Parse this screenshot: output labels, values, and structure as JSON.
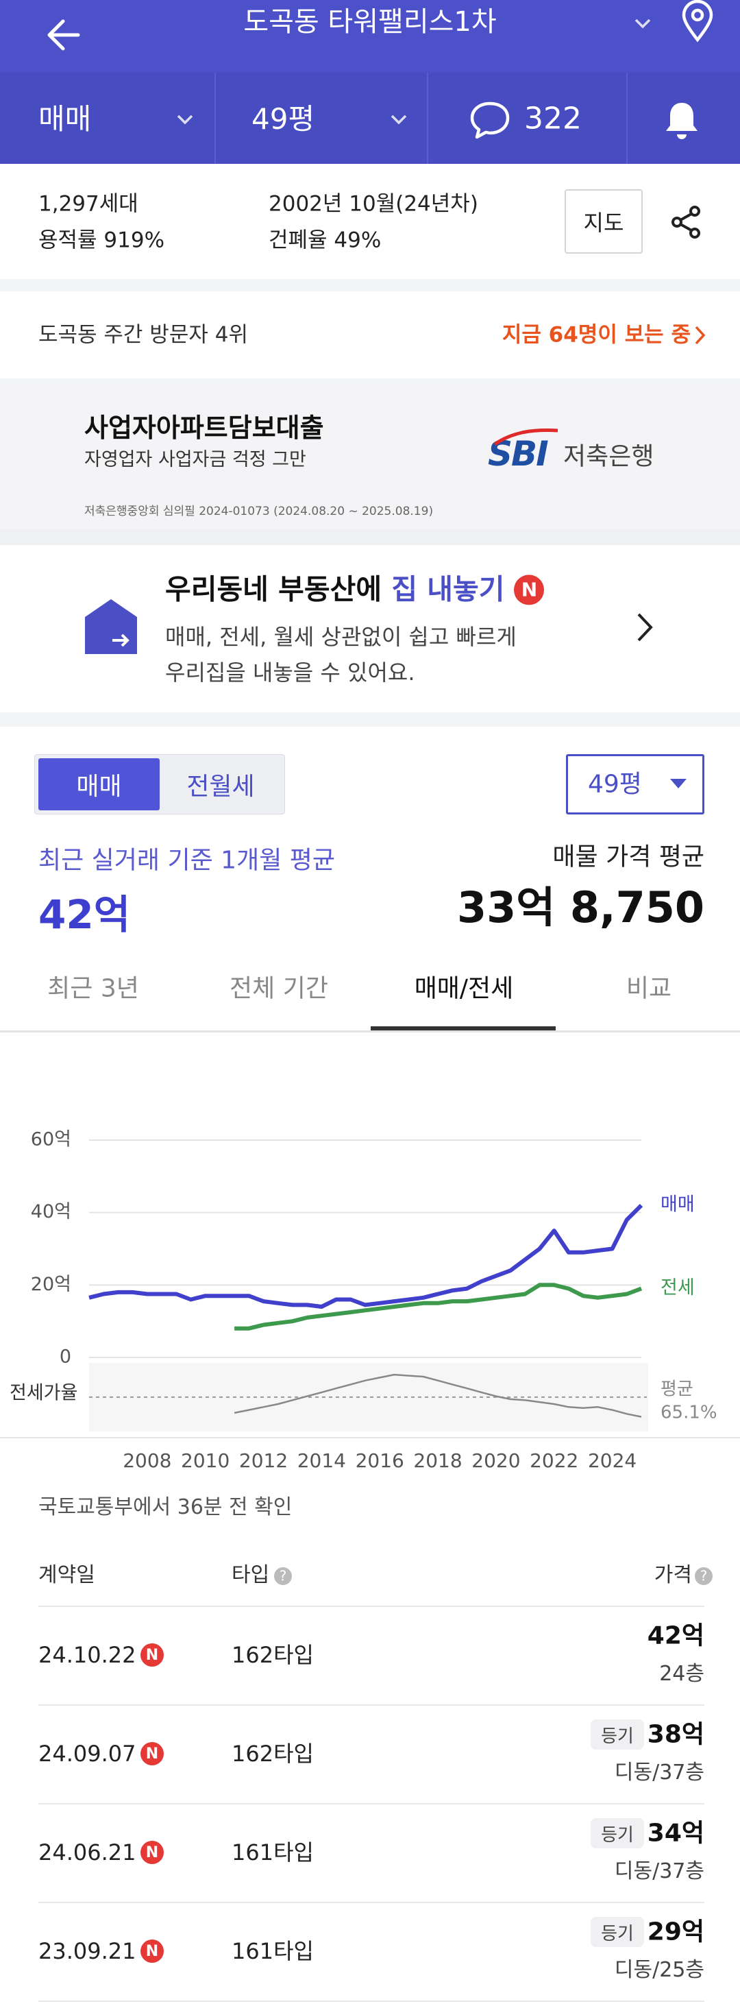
{
  "header": {
    "title": "도곡동 타워팰리스1차"
  },
  "filters": {
    "deal": "매매",
    "size": "49평",
    "comments": "322"
  },
  "info": {
    "households": "1,297세대",
    "far": "용적률 919%",
    "built": "2002년 10월(24년차)",
    "bcr": "건폐율 49%",
    "map_button": "지도"
  },
  "visitors": {
    "rank": "도곡동 주간 방문자 4위",
    "live": "지금 64명이 보는 중"
  },
  "ad": {
    "title": "사업자아파트담보대출",
    "subtitle": "자영업자 사업자금 걱정 그만",
    "brand_logo": "SBI",
    "brand_name": "저축은행",
    "notice": "저축은행중앙회 심의필 2024-01073 (2024.08.20 ~ 2025.08.19)"
  },
  "promo": {
    "title_start": "우리동네 부동산에 ",
    "title_highlight": "집 내놓기",
    "badge": "N",
    "line1": "매매, 전세, 월세 상관없이 쉽고 빠르게",
    "line2": "우리집을 내놓을 수 있어요."
  },
  "trade": {
    "toggle": [
      "매매",
      "전월세"
    ],
    "size": "49평",
    "recent_label": "최근 실거래 기준 1개월 평균",
    "recent_value": "42억",
    "listing_label": "매물 가격 평균",
    "listing_value": "33억 8,750",
    "tabs": [
      "최근 3년",
      "전체 기간",
      "매매/전세",
      "비교"
    ]
  },
  "chart_data": {
    "type": "line",
    "x": [
      2006,
      2006.5,
      2007,
      2007.5,
      2008,
      2008.5,
      2009,
      2009.5,
      2010,
      2010.5,
      2011,
      2011.5,
      2012,
      2012.5,
      2013,
      2013.5,
      2014,
      2014.5,
      2015,
      2015.5,
      2016,
      2016.5,
      2017,
      2017.5,
      2018,
      2018.5,
      2019,
      2019.5,
      2020,
      2020.5,
      2021,
      2021.5,
      2022,
      2022.5,
      2023,
      2023.5,
      2024,
      2024.5,
      2025
    ],
    "xlim": [
      2006,
      2025
    ],
    "xticks": [
      2008,
      2010,
      2012,
      2014,
      2016,
      2018,
      2020,
      2022,
      2024
    ],
    "ylim": [
      0,
      60
    ],
    "yticks": [
      0,
      {
        "value": 20,
        "label": "20억"
      },
      {
        "value": 40,
        "label": "40억"
      },
      {
        "value": 60,
        "label": "60억"
      }
    ],
    "grid": true,
    "series": [
      {
        "name": "매매",
        "color": "#4040cc",
        "values": [
          16.5,
          17.5,
          18,
          18,
          17.5,
          17.5,
          17.5,
          16,
          17,
          17,
          17,
          17,
          15.5,
          15,
          14.5,
          14.5,
          14,
          16,
          16,
          14.5,
          15,
          15.5,
          16,
          16.5,
          17.5,
          18.5,
          19,
          21,
          22.5,
          24,
          27,
          30,
          35,
          29,
          29,
          29.5,
          30,
          38,
          42
        ]
      },
      {
        "name": "전세",
        "color": "#3d9a4d",
        "values": [
          null,
          null,
          null,
          null,
          null,
          null,
          null,
          null,
          null,
          null,
          8,
          8,
          9,
          9.5,
          10,
          11,
          11.5,
          12,
          12.5,
          13,
          13.5,
          14,
          14.5,
          15,
          15,
          15.5,
          15.5,
          16,
          16.5,
          17,
          17.5,
          20,
          20,
          19,
          17,
          16.5,
          17,
          17.5,
          19
        ]
      }
    ],
    "ratio": {
      "label": "전세가율",
      "color": "#888888",
      "ylim": [
        30,
        100
      ],
      "values": [
        null,
        null,
        null,
        null,
        null,
        null,
        null,
        null,
        null,
        null,
        49,
        52,
        55,
        58,
        62,
        66,
        70,
        74,
        78,
        82,
        85,
        88,
        87,
        86,
        82,
        78,
        74,
        70,
        66,
        63,
        62,
        60,
        58,
        55,
        54,
        55,
        52,
        48,
        45
      ],
      "average": 65.1,
      "average_label": "평균",
      "average_value_label": "65.1%"
    }
  },
  "table": {
    "source": "국토교통부에서 36분 전 확인",
    "headers": [
      "계약일",
      "타입",
      "가격"
    ],
    "rows": [
      {
        "date": "24.10.22",
        "badge": "N",
        "type": "162타입",
        "price": "42억",
        "floor": "24층"
      },
      {
        "date": "24.09.07",
        "badge": "N",
        "type": "162타입",
        "tag": "등기",
        "price": "38억",
        "floor": "디동/37층"
      },
      {
        "date": "24.06.21",
        "badge": "N",
        "type": "161타입",
        "tag": "등기",
        "price": "34억",
        "floor": "디동/37층"
      },
      {
        "date": "23.09.21",
        "badge": "N",
        "type": "161타입",
        "tag": "등기",
        "price": "29억",
        "floor": "디동/25층"
      }
    ]
  }
}
